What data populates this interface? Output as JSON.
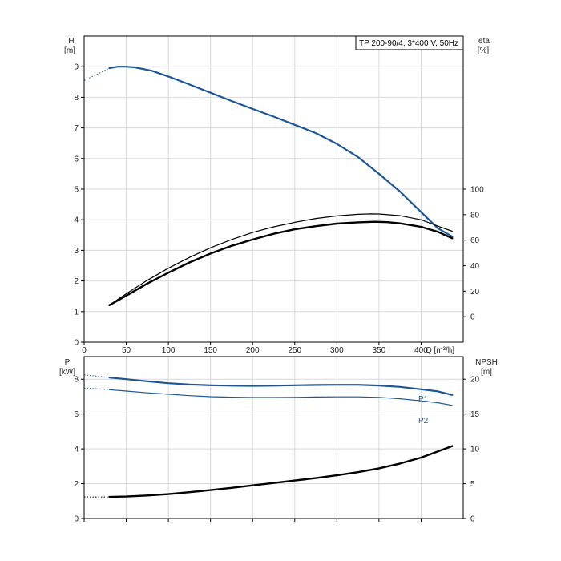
{
  "title": "TP 200-90/4, 3*400 V, 50Hz",
  "colors": {
    "blue": "#1b5796",
    "black": "#000000",
    "grid": "#d9d9d9"
  },
  "chart_data": [
    {
      "type": "line",
      "panel": "top",
      "title": "TP 200-90/4, 3*400 V, 50Hz",
      "xlabel": "Q [m³/h]",
      "ylabel": "H",
      "ylabel_unit": "[m]",
      "y2label": "eta",
      "y2label_unit": "[%]",
      "xlim": [
        0,
        450
      ],
      "ylim": [
        0,
        10
      ],
      "y2lim": [
        -20,
        220
      ],
      "xticks": [
        0,
        50,
        100,
        150,
        200,
        250,
        300,
        350,
        400
      ],
      "yticks": [
        0,
        1,
        2,
        3,
        4,
        5,
        6,
        7,
        8,
        9
      ],
      "y2ticks": [
        0,
        20,
        40,
        60,
        80,
        100
      ],
      "grid": true,
      "series": [
        {
          "axis": "left",
          "color": "#1b5796",
          "width": 2.2,
          "extension": [
            [
              0,
              8.55
            ],
            [
              15,
              8.75
            ],
            [
              30,
              8.95
            ]
          ],
          "points": [
            [
              30,
              8.95
            ],
            [
              40,
              9.0
            ],
            [
              50,
              9.0
            ],
            [
              60,
              8.98
            ],
            [
              80,
              8.87
            ],
            [
              100,
              8.68
            ],
            [
              125,
              8.42
            ],
            [
              150,
              8.15
            ],
            [
              175,
              7.88
            ],
            [
              200,
              7.62
            ],
            [
              225,
              7.37
            ],
            [
              250,
              7.1
            ],
            [
              275,
              6.83
            ],
            [
              300,
              6.48
            ],
            [
              325,
              6.05
            ],
            [
              350,
              5.5
            ],
            [
              375,
              4.92
            ],
            [
              400,
              4.25
            ],
            [
              420,
              3.72
            ],
            [
              437,
              3.45
            ]
          ]
        },
        {
          "axis": "right",
          "color": "#000000",
          "width": 1.2,
          "points": [
            [
              30,
              9
            ],
            [
              50,
              18
            ],
            [
              75,
              28.5
            ],
            [
              100,
              38
            ],
            [
              125,
              46.5
            ],
            [
              150,
              54
            ],
            [
              175,
              60.5
            ],
            [
              200,
              66
            ],
            [
              225,
              70.5
            ],
            [
              250,
              74
            ],
            [
              275,
              77
            ],
            [
              300,
              79
            ],
            [
              325,
              80.3
            ],
            [
              340,
              80.6
            ],
            [
              350,
              80.5
            ],
            [
              375,
              79.2
            ],
            [
              400,
              76
            ],
            [
              420,
              71
            ],
            [
              437,
              67
            ]
          ]
        },
        {
          "axis": "right",
          "color": "#000000",
          "width": 2.4,
          "points": [
            [
              30,
              9
            ],
            [
              50,
              16.5
            ],
            [
              75,
              26
            ],
            [
              100,
              34.5
            ],
            [
              125,
              42.5
            ],
            [
              150,
              49.5
            ],
            [
              175,
              55.5
            ],
            [
              200,
              60.5
            ],
            [
              225,
              65
            ],
            [
              250,
              68.5
            ],
            [
              275,
              71
            ],
            [
              300,
              73
            ],
            [
              325,
              74
            ],
            [
              345,
              74.4
            ],
            [
              360,
              74.1
            ],
            [
              375,
              73.2
            ],
            [
              400,
              70.5
            ],
            [
              420,
              66.5
            ],
            [
              437,
              61.5
            ]
          ]
        }
      ]
    },
    {
      "type": "line",
      "panel": "bottom",
      "xlabel": "",
      "ylabel": "P",
      "ylabel_unit": "[kW]",
      "y2label": "NPSH",
      "y2label_unit": "[m]",
      "xlim": [
        0,
        450
      ],
      "ylim": [
        0,
        9.3
      ],
      "y2lim": [
        0,
        23.25
      ],
      "xticks": [
        0,
        50,
        100,
        150,
        200,
        250,
        300,
        350,
        400
      ],
      "yticks": [
        0,
        2,
        4,
        6,
        8
      ],
      "y2ticks": [
        0,
        5,
        10,
        15,
        20
      ],
      "grid": true,
      "series": [
        {
          "name": "P1",
          "axis": "left",
          "color": "#1b5796",
          "width": 2.2,
          "extension": [
            [
              0,
              8.25
            ],
            [
              30,
              8.1
            ]
          ],
          "points": [
            [
              30,
              8.1
            ],
            [
              50,
              8.0
            ],
            [
              75,
              7.88
            ],
            [
              100,
              7.77
            ],
            [
              125,
              7.7
            ],
            [
              150,
              7.65
            ],
            [
              175,
              7.63
            ],
            [
              200,
              7.62
            ],
            [
              225,
              7.63
            ],
            [
              250,
              7.65
            ],
            [
              275,
              7.67
            ],
            [
              300,
              7.68
            ],
            [
              325,
              7.68
            ],
            [
              350,
              7.64
            ],
            [
              375,
              7.56
            ],
            [
              400,
              7.42
            ],
            [
              420,
              7.3
            ],
            [
              437,
              7.1
            ]
          ]
        },
        {
          "name": "P2",
          "axis": "left",
          "color": "#1b5796",
          "width": 1.2,
          "extension": [
            [
              0,
              7.5
            ],
            [
              30,
              7.4
            ]
          ],
          "points": [
            [
              30,
              7.4
            ],
            [
              50,
              7.32
            ],
            [
              75,
              7.22
            ],
            [
              100,
              7.14
            ],
            [
              125,
              7.06
            ],
            [
              150,
              7.0
            ],
            [
              175,
              6.97
            ],
            [
              200,
              6.95
            ],
            [
              225,
              6.95
            ],
            [
              250,
              6.96
            ],
            [
              275,
              6.98
            ],
            [
              300,
              6.99
            ],
            [
              325,
              6.99
            ],
            [
              350,
              6.96
            ],
            [
              375,
              6.88
            ],
            [
              400,
              6.76
            ],
            [
              420,
              6.65
            ],
            [
              437,
              6.5
            ]
          ]
        },
        {
          "axis": "right",
          "color": "#000000",
          "width": 2.4,
          "extension": [
            [
              0,
              3.1
            ],
            [
              30,
              3.1
            ]
          ],
          "points": [
            [
              30,
              3.1
            ],
            [
              50,
              3.15
            ],
            [
              75,
              3.3
            ],
            [
              100,
              3.5
            ],
            [
              125,
              3.78
            ],
            [
              150,
              4.08
            ],
            [
              175,
              4.4
            ],
            [
              200,
              4.75
            ],
            [
              225,
              5.1
            ],
            [
              250,
              5.45
            ],
            [
              275,
              5.8
            ],
            [
              300,
              6.2
            ],
            [
              325,
              6.65
            ],
            [
              350,
              7.2
            ],
            [
              375,
              7.9
            ],
            [
              400,
              8.75
            ],
            [
              420,
              9.65
            ],
            [
              437,
              10.4
            ]
          ]
        }
      ]
    }
  ]
}
